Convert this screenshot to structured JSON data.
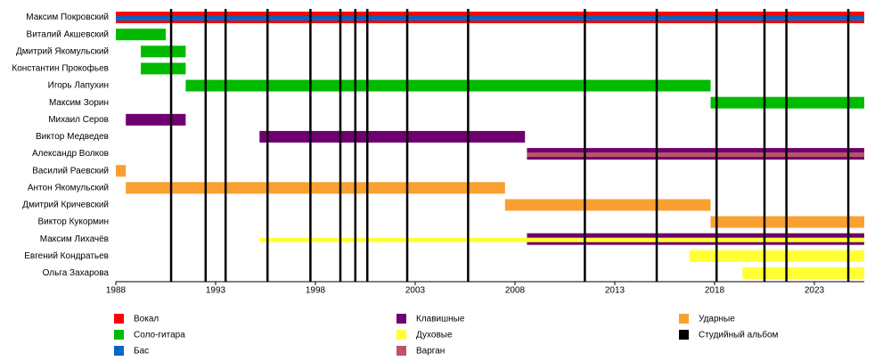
{
  "chart_data": {
    "type": "timeline",
    "categories": [
      "Максим Покровский",
      "Виталий Акшевский",
      "Дмитрий Якомульский",
      "Константин Прокофьев",
      "Игорь Лапухин",
      "Максим Зорин",
      "Михаил Серов",
      "Виктор Медведев",
      "Александр Волков",
      "Василий Раевский",
      "Антон Якомульский",
      "Дмитрий Кричевский",
      "Виктор Кукормин",
      "Максим Лихачёв",
      "Евгений Кондратьев",
      "Ольга Захарова"
    ],
    "xlim": [
      1988,
      2025.5
    ],
    "xticks": [
      1988,
      1993,
      1998,
      2003,
      2008,
      2013,
      2018,
      2023
    ],
    "series": [
      {
        "name": "Вокал",
        "color": "#ff0000",
        "values": [
          [
            1988,
            2025.5
          ],
          null,
          null,
          null,
          null,
          null,
          null,
          null,
          null,
          null,
          null,
          null,
          null,
          null,
          null,
          null
        ]
      },
      {
        "name": "Соло-гитара",
        "color": "#00bb00",
        "values": [
          null,
          [
            1988,
            1990.5
          ],
          [
            1989.25,
            1991.5
          ],
          [
            1989.25,
            1991.5
          ],
          [
            1991.5,
            2017.8
          ],
          [
            2017.8,
            2025.5
          ],
          null,
          null,
          null,
          null,
          null,
          null,
          null,
          null,
          null,
          null
        ]
      },
      {
        "name": "Бас",
        "color": "#0066cc",
        "values": [
          [
            1988,
            2025.5
          ],
          null,
          null,
          null,
          null,
          null,
          null,
          null,
          null,
          null,
          null,
          null,
          null,
          null,
          null,
          null
        ]
      },
      {
        "name": "Клавишные",
        "color": "#6f006f",
        "values": [
          null,
          null,
          null,
          null,
          null,
          null,
          [
            1988.5,
            1991.5
          ],
          [
            1995.2,
            2008.5
          ],
          [
            2008.6,
            2025.5
          ],
          null,
          null,
          null,
          null,
          [
            2008.6,
            2025.5
          ],
          null,
          null
        ]
      },
      {
        "name": "Духовые",
        "color": "#ffff33",
        "values": [
          null,
          null,
          null,
          null,
          null,
          null,
          null,
          null,
          null,
          null,
          null,
          null,
          null,
          [
            1995.2,
            2025.5
          ],
          [
            2016.75,
            2025.5
          ],
          [
            2019.4,
            2025.5
          ]
        ]
      },
      {
        "name": "Варган",
        "color": "#bb5566",
        "values": [
          null,
          null,
          null,
          null,
          null,
          null,
          null,
          null,
          [
            2008.6,
            2025.5
          ],
          null,
          null,
          null,
          null,
          null,
          null,
          null
        ]
      },
      {
        "name": "Ударные",
        "color": "#f9a030",
        "values": [
          null,
          null,
          null,
          null,
          null,
          null,
          null,
          null,
          null,
          [
            1988,
            1988.5
          ],
          [
            1988.5,
            2007.5
          ],
          [
            2007.5,
            2017.8
          ],
          [
            2017.8,
            2025.5
          ],
          null,
          null,
          null
        ]
      }
    ],
    "albums": {
      "name": "Студийный альбом",
      "color": "#000000",
      "x": [
        1990.77,
        1992.5,
        1993.5,
        1995.6,
        1997.75,
        1999.25,
        2000,
        2000.6,
        2002.6,
        2005.65,
        2011.5,
        2015.1,
        2018.1,
        2020.5,
        2021.6,
        2024.7
      ]
    }
  }
}
